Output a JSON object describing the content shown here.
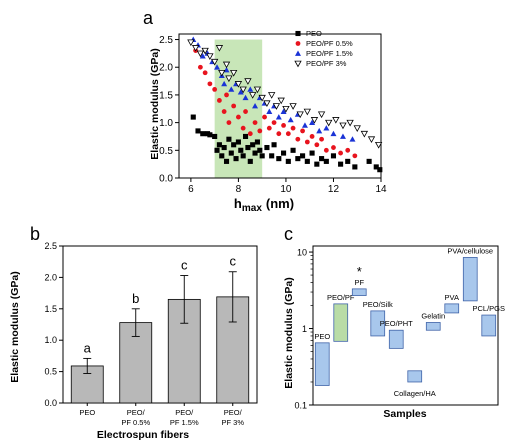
{
  "chart_data": [
    {
      "panel": "a",
      "type": "scatter",
      "xlabel": "h",
      "xlabel_sub": "max",
      "xlabel_unit": "(nm)",
      "ylabel": "Elastic modulus (GPa)",
      "xlim": [
        5.5,
        14
      ],
      "ylim": [
        0,
        2.6
      ],
      "xticks": [
        6,
        8,
        10,
        12,
        14
      ],
      "yticks": [
        0.0,
        0.5,
        1.0,
        1.5,
        2.0,
        2.5
      ],
      "highlight_region_x": [
        7,
        9
      ],
      "highlight_color": "#c8e6b8",
      "legend_position": "top-right",
      "series": [
        {
          "name": "PEO",
          "marker": "square",
          "color": "#000000",
          "points": [
            [
              6.1,
              1.1
            ],
            [
              6.3,
              0.85
            ],
            [
              6.5,
              0.8
            ],
            [
              6.7,
              0.8
            ],
            [
              6.8,
              0.78
            ],
            [
              7.0,
              0.75
            ],
            [
              7.1,
              0.5
            ],
            [
              7.2,
              0.6
            ],
            [
              7.3,
              0.4
            ],
            [
              7.4,
              0.55
            ],
            [
              7.5,
              0.3
            ],
            [
              7.6,
              0.7
            ],
            [
              7.7,
              0.45
            ],
            [
              7.8,
              0.6
            ],
            [
              7.9,
              0.35
            ],
            [
              8.0,
              0.65
            ],
            [
              8.1,
              0.5
            ],
            [
              8.2,
              0.4
            ],
            [
              8.3,
              0.75
            ],
            [
              8.4,
              0.55
            ],
            [
              8.5,
              0.3
            ],
            [
              8.6,
              0.6
            ],
            [
              8.7,
              0.45
            ],
            [
              8.8,
              0.65
            ],
            [
              8.9,
              0.5
            ],
            [
              9.0,
              0.4
            ],
            [
              9.2,
              0.55
            ],
            [
              9.4,
              0.4
            ],
            [
              9.5,
              0.6
            ],
            [
              9.7,
              0.35
            ],
            [
              9.9,
              0.45
            ],
            [
              10.1,
              0.3
            ],
            [
              10.3,
              0.5
            ],
            [
              10.5,
              0.35
            ],
            [
              10.7,
              0.4
            ],
            [
              10.9,
              0.3
            ],
            [
              11.1,
              0.45
            ],
            [
              11.3,
              0.25
            ],
            [
              11.5,
              0.35
            ],
            [
              11.7,
              0.3
            ],
            [
              12.0,
              0.4
            ],
            [
              12.3,
              0.25
            ],
            [
              12.6,
              0.3
            ],
            [
              12.9,
              0.2
            ],
            [
              13.5,
              0.3
            ],
            [
              13.8,
              0.2
            ],
            [
              13.95,
              0.15
            ]
          ]
        },
        {
          "name": "PEO/PF 0.5%",
          "marker": "circle",
          "color": "#e8141e",
          "points": [
            [
              6.2,
              2.3
            ],
            [
              6.4,
              2.0
            ],
            [
              6.6,
              1.9
            ],
            [
              6.8,
              1.7
            ],
            [
              7.0,
              1.6
            ],
            [
              7.2,
              1.4
            ],
            [
              7.4,
              1.2
            ],
            [
              7.5,
              1.5
            ],
            [
              7.6,
              1.0
            ],
            [
              7.8,
              1.3
            ],
            [
              8.0,
              1.1
            ],
            [
              8.2,
              0.9
            ],
            [
              8.3,
              1.2
            ],
            [
              8.5,
              0.8
            ],
            [
              8.7,
              1.0
            ],
            [
              8.9,
              0.85
            ],
            [
              9.1,
              1.1
            ],
            [
              9.3,
              0.9
            ],
            [
              9.5,
              1.0
            ],
            [
              9.7,
              0.8
            ],
            [
              9.9,
              0.95
            ],
            [
              10.1,
              0.8
            ],
            [
              10.3,
              0.9
            ],
            [
              10.5,
              0.7
            ],
            [
              10.7,
              0.85
            ],
            [
              10.9,
              0.65
            ],
            [
              11.1,
              0.75
            ],
            [
              11.3,
              0.6
            ],
            [
              11.5,
              0.7
            ],
            [
              11.7,
              0.5
            ],
            [
              12.0,
              0.55
            ],
            [
              12.3,
              0.45
            ],
            [
              12.6,
              0.5
            ],
            [
              12.9,
              0.4
            ]
          ]
        },
        {
          "name": "PEO/PF 1.5%",
          "marker": "triangle-up",
          "color": "#1a33d6",
          "points": [
            [
              6.1,
              2.5
            ],
            [
              6.3,
              2.4
            ],
            [
              6.5,
              2.2
            ],
            [
              6.7,
              2.25
            ],
            [
              6.9,
              2.1
            ],
            [
              7.1,
              2.0
            ],
            [
              7.3,
              1.85
            ],
            [
              7.4,
              1.7
            ],
            [
              7.5,
              1.95
            ],
            [
              7.7,
              1.6
            ],
            [
              7.9,
              1.7
            ],
            [
              8.1,
              1.55
            ],
            [
              8.3,
              1.45
            ],
            [
              8.5,
              1.6
            ],
            [
              8.7,
              1.3
            ],
            [
              8.9,
              1.45
            ],
            [
              9.1,
              1.35
            ],
            [
              9.3,
              1.2
            ],
            [
              9.5,
              1.3
            ],
            [
              9.7,
              1.1
            ],
            [
              9.9,
              1.2
            ],
            [
              10.2,
              1.05
            ],
            [
              10.5,
              1.15
            ],
            [
              10.8,
              0.95
            ],
            [
              11.1,
              1.0
            ],
            [
              11.4,
              0.85
            ],
            [
              11.7,
              0.9
            ],
            [
              12.0,
              0.8
            ],
            [
              12.4,
              0.75
            ],
            [
              12.8,
              0.7
            ]
          ]
        },
        {
          "name": "PEO/PF 3%",
          "marker": "triangle-down-open",
          "color": "#000000",
          "points": [
            [
              6.0,
              2.45
            ],
            [
              6.2,
              2.35
            ],
            [
              6.4,
              2.25
            ],
            [
              6.6,
              2.3
            ],
            [
              6.8,
              2.2
            ],
            [
              7.0,
              2.1
            ],
            [
              7.2,
              2.35
            ],
            [
              7.3,
              1.9
            ],
            [
              7.5,
              2.05
            ],
            [
              7.6,
              1.8
            ],
            [
              7.8,
              1.9
            ],
            [
              8.0,
              1.7
            ],
            [
              8.2,
              1.6
            ],
            [
              8.4,
              1.75
            ],
            [
              8.6,
              1.5
            ],
            [
              8.8,
              1.6
            ],
            [
              9.0,
              1.45
            ],
            [
              9.2,
              1.35
            ],
            [
              9.4,
              1.5
            ],
            [
              9.6,
              1.3
            ],
            [
              9.8,
              1.4
            ],
            [
              10.0,
              1.25
            ],
            [
              10.3,
              1.3
            ],
            [
              10.6,
              1.15
            ],
            [
              10.9,
              1.2
            ],
            [
              11.2,
              1.05
            ],
            [
              11.5,
              1.15
            ],
            [
              11.8,
              1.0
            ],
            [
              12.1,
              1.05
            ],
            [
              12.4,
              0.95
            ],
            [
              12.7,
              1.0
            ],
            [
              13.0,
              0.9
            ],
            [
              13.3,
              0.8
            ],
            [
              13.6,
              0.7
            ],
            [
              13.9,
              0.6
            ]
          ]
        }
      ]
    },
    {
      "panel": "b",
      "type": "bar",
      "xlabel": "Electrospun fibers",
      "ylabel": "Elastic modulus (GPa)",
      "ylim": [
        0,
        2.5
      ],
      "yticks": [
        "0.0",
        "0.5",
        "1.0",
        "1.5",
        "2.0",
        "2.5"
      ],
      "ytick_values": [
        0.0,
        0.5,
        1.0,
        1.5,
        2.0,
        2.5
      ],
      "bar_color": "#b8b8b8",
      "categories": [
        [
          "PEO"
        ],
        [
          "PEO/",
          "PF 0.5%"
        ],
        [
          "PEO/",
          "PF 1.5%"
        ],
        [
          "PEO/",
          "PF 3%"
        ]
      ],
      "values": [
        0.59,
        1.28,
        1.65,
        1.69
      ],
      "errors": [
        0.12,
        0.22,
        0.38,
        0.4
      ],
      "annotations": [
        "a",
        "b",
        "c",
        "c"
      ]
    },
    {
      "panel": "c",
      "type": "floating-bar",
      "xlabel": "Samples",
      "ylabel": "Elastic modulus (GPa)",
      "yscale": "log",
      "ylim": [
        0.1,
        12
      ],
      "yticks": [
        {
          "value": 0.1,
          "label": "0.1"
        },
        {
          "value": 1,
          "label": "1"
        },
        {
          "value": 10,
          "label": "10"
        }
      ],
      "boxes": [
        {
          "label": "PEO",
          "low": 0.18,
          "high": 0.65,
          "color": "#a8c7ec"
        },
        {
          "label": "PEO/PF",
          "low": 0.68,
          "high": 2.1,
          "color": "#b9dca6"
        },
        {
          "label": "PF",
          "low": 2.7,
          "high": 3.3,
          "color": "#a8c7ec",
          "marker": "*"
        },
        {
          "label": "PEO/Silk",
          "low": 0.8,
          "high": 1.7,
          "color": "#a8c7ec"
        },
        {
          "label": "PEO/PHT",
          "low": 0.55,
          "high": 0.95,
          "color": "#a8c7ec"
        },
        {
          "label": "Collagen/HA",
          "low": 0.2,
          "high": 0.28,
          "color": "#a8c7ec"
        },
        {
          "label": "Gelatin",
          "low": 0.95,
          "high": 1.2,
          "color": "#a8c7ec"
        },
        {
          "label": "PVA",
          "low": 1.6,
          "high": 2.1,
          "color": "#a8c7ec"
        },
        {
          "label": "PVA/cellulose",
          "low": 2.3,
          "high": 8.5,
          "color": "#a8c7ec"
        },
        {
          "label": "PCL/PGS",
          "low": 0.8,
          "high": 1.5,
          "color": "#a8c7ec"
        }
      ]
    }
  ]
}
